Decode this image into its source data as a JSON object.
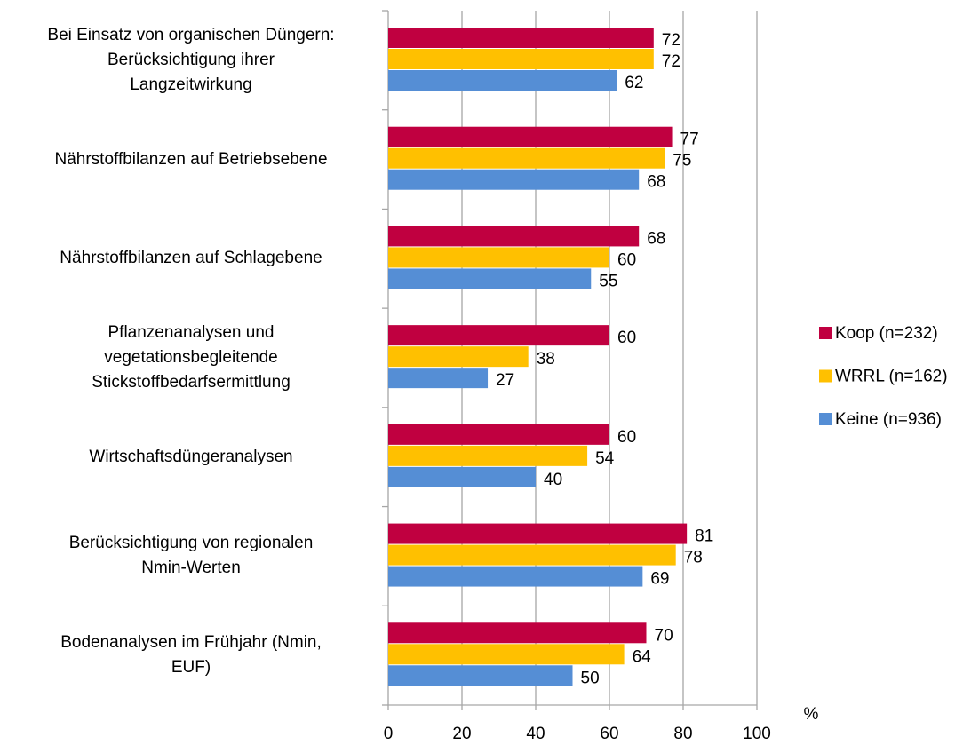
{
  "chart_data": {
    "type": "bar",
    "orientation": "horizontal",
    "categories": [
      "Bei Einsatz von organischen Düngern:\nBerücksichtigung ihrer\nLangzeitwirkung",
      "Nährstoffbilanzen auf Betriebsebene",
      "Nährstoffbilanzen auf Schlagebene",
      "Pflanzenanalysen und\nvegetationsbegleitende\nStickstoffbedarfsermittlung",
      "Wirtschaftsdüngeranalysen",
      "Berücksichtigung von regionalen\nNmin-Werten",
      "Bodenanalysen im Frühjahr (Nmin,\nEUF)"
    ],
    "series": [
      {
        "name": "Koop (n=232)",
        "color": "#c00040",
        "values": [
          72,
          77,
          68,
          60,
          60,
          81,
          70
        ]
      },
      {
        "name": "WRRL (n=162)",
        "color": "#ffc000",
        "values": [
          72,
          75,
          60,
          38,
          54,
          78,
          64
        ]
      },
      {
        "name": "Keine (n=936)",
        "color": "#558ed5",
        "values": [
          62,
          68,
          55,
          27,
          40,
          69,
          50
        ]
      }
    ],
    "x_label": "%",
    "xlim": [
      0,
      100
    ],
    "xticks": [
      0,
      20,
      40,
      60,
      80,
      100
    ],
    "grid": true,
    "legend": "right"
  }
}
